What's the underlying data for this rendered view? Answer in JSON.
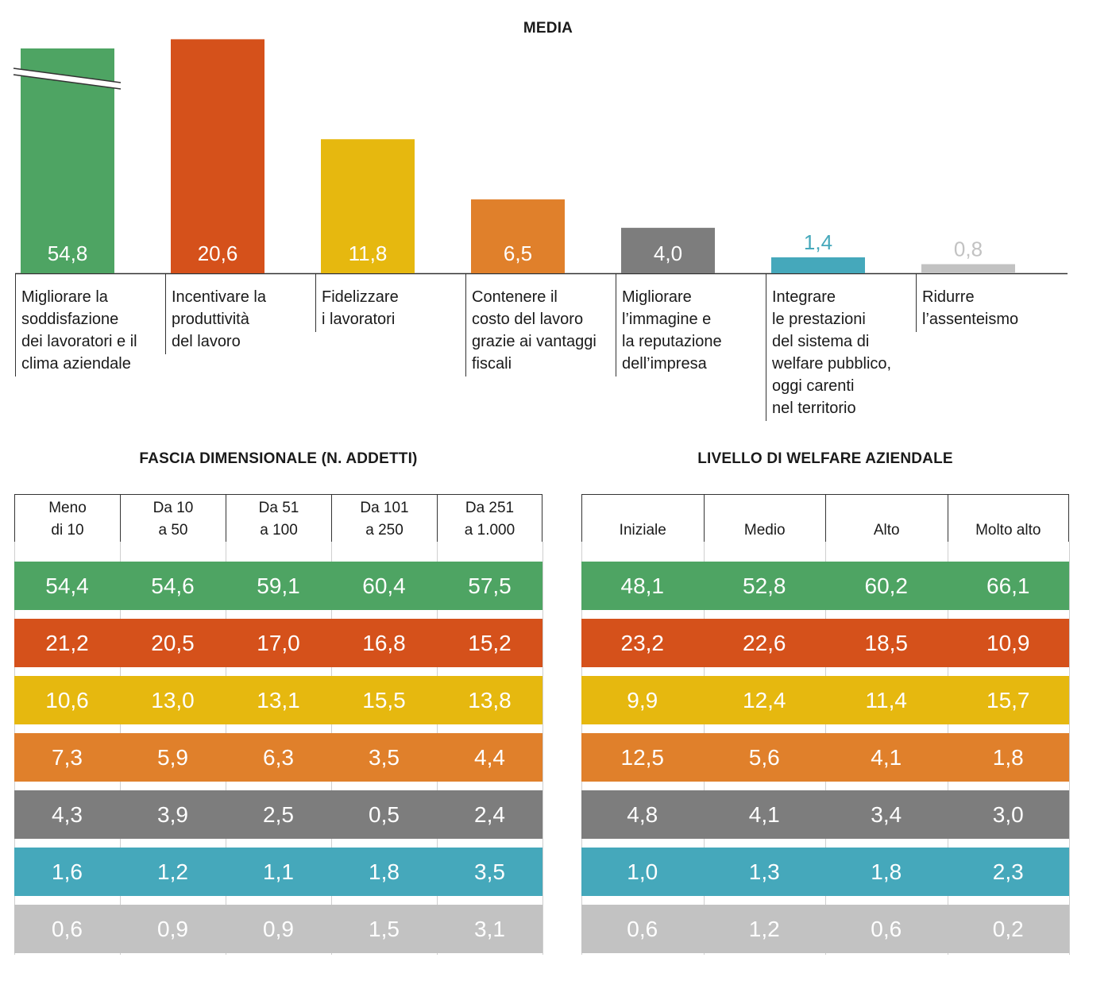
{
  "titles": {
    "main": "MEDIA",
    "by_size": "FASCIA DIMENSIONALE (N. ADDETTI)",
    "by_level": "LIVELLO DI WELFARE AZIENDALE"
  },
  "colors": {
    "green": "#4ea463",
    "red": "#d5511b",
    "yellow": "#e6b80f",
    "orange": "#e0802b",
    "darkgray": "#7d7d7d",
    "teal": "#45a8bb",
    "lightgray": "#c2c2c2"
  },
  "chart_data": [
    {
      "type": "bar",
      "title": "MEDIA",
      "categories": [
        "Migliorare la\nsoddisfazione\ndei lavoratori e il\nclima aziendale",
        "Incentivare la\nproduttività\ndel lavoro",
        "Fidelizzare\ni lavoratori",
        "Contenere il\ncosto del lavoro\ngrazie ai vantaggi\nfiscali",
        "Migliorare\nl’immagine e\nla reputazione\ndell’impresa",
        "Integrare\nle prestazioni\ndel sistema di\nwelfare pubblico,\noggi carenti\nnel territorio",
        "Ridurre\nl’assenteismo"
      ],
      "values": [
        54.8,
        20.6,
        11.8,
        6.5,
        4.0,
        1.4,
        0.8
      ],
      "value_labels": [
        "54,8",
        "20,6",
        "11,8",
        "6,5",
        "4,0",
        "1,4",
        "0,8"
      ],
      "colors": [
        "#4ea463",
        "#d5511b",
        "#e6b80f",
        "#e0802b",
        "#7d7d7d",
        "#45a8bb",
        "#c2c2c2"
      ],
      "axis_break_on_first_bar": true
    },
    {
      "type": "table",
      "title": "FASCIA DIMENSIONALE (N. ADDETTI)",
      "columns": [
        "Meno\ndi 10",
        "Da 10\na 50",
        "Da 51\na 100",
        "Da 101\na 250",
        "Da 251\na 1.000"
      ],
      "rows": [
        [
          "54,4",
          "54,6",
          "59,1",
          "60,4",
          "57,5"
        ],
        [
          "21,2",
          "20,5",
          "17,0",
          "16,8",
          "15,2"
        ],
        [
          "10,6",
          "13,0",
          "13,1",
          "15,5",
          "13,8"
        ],
        [
          "7,3",
          "5,9",
          "6,3",
          "3,5",
          "4,4"
        ],
        [
          "4,3",
          "3,9",
          "2,5",
          "0,5",
          "2,4"
        ],
        [
          "1,6",
          "1,2",
          "1,1",
          "1,8",
          "3,5"
        ],
        [
          "0,6",
          "0,9",
          "0,9",
          "1,5",
          "3,1"
        ]
      ]
    },
    {
      "type": "table",
      "title": "LIVELLO DI WELFARE AZIENDALE",
      "columns": [
        "Iniziale",
        "Medio",
        "Alto",
        "Molto alto"
      ],
      "rows": [
        [
          "48,1",
          "52,8",
          "60,2",
          "66,1"
        ],
        [
          "23,2",
          "22,6",
          "18,5",
          "10,9"
        ],
        [
          "9,9",
          "12,4",
          "11,4",
          "15,7"
        ],
        [
          "12,5",
          "5,6",
          "4,1",
          "1,8"
        ],
        [
          "4,8",
          "4,1",
          "3,4",
          "3,0"
        ],
        [
          "1,0",
          "1,3",
          "1,8",
          "2,3"
        ],
        [
          "0,6",
          "1,2",
          "0,6",
          "0,2"
        ]
      ]
    }
  ]
}
